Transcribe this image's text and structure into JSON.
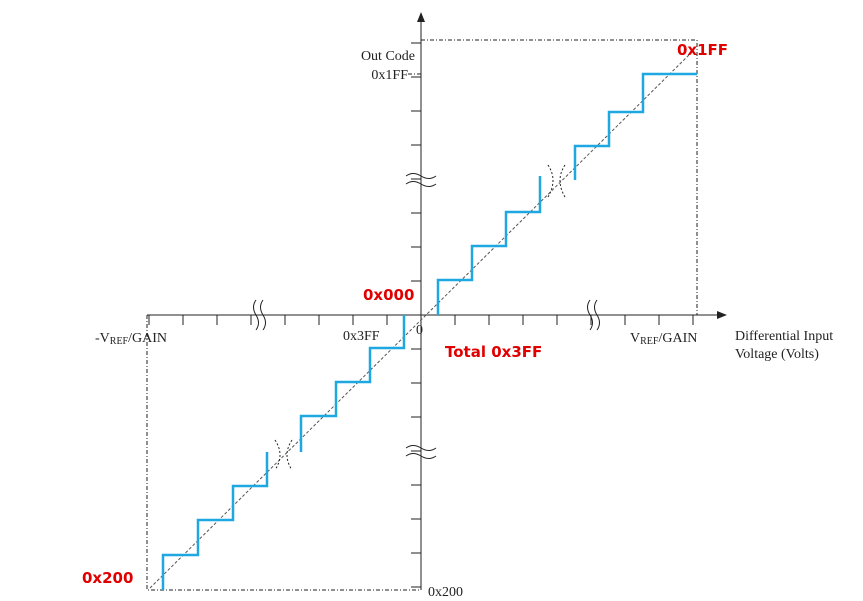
{
  "diagram": {
    "y_axis_title": "Out Code",
    "y_top_label": "0x1FF",
    "y_bottom_label": "0x200",
    "x_left_label": {
      "prefix": "-V",
      "sub": "REF",
      "suffix": "/GAIN"
    },
    "x_right_label": {
      "prefix": "V",
      "sub": "REF",
      "suffix": "/GAIN"
    },
    "x_neg_label": "0x3FF",
    "origin_label": "0",
    "x_axis_title": [
      "Differential Input",
      "Voltage (Volts)"
    ],
    "annotations": {
      "top_right": "0x1FF",
      "zero": "0x000",
      "total": "Total 0x3FF",
      "bottom_left": "0x200"
    }
  }
}
